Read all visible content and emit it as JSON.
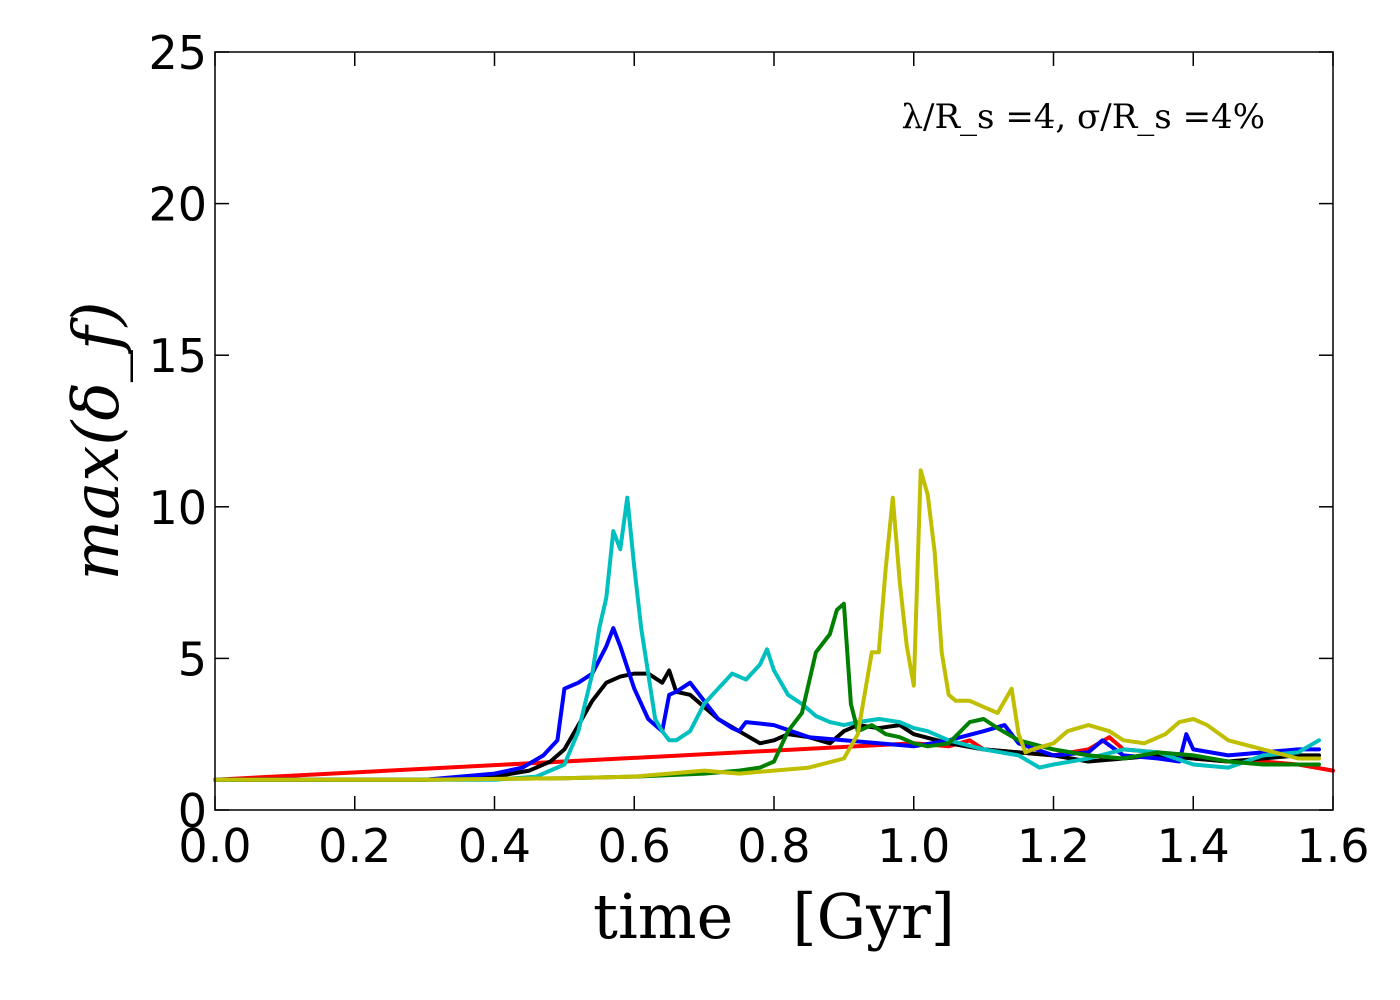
{
  "chart_data": {
    "type": "line",
    "title": "",
    "xlabel": "time   [Gyr]",
    "ylabel": "max(δ_f)",
    "xlim": [
      0.0,
      1.6
    ],
    "ylim": [
      0,
      25
    ],
    "xticks": [
      "0.0",
      "0.2",
      "0.4",
      "0.6",
      "0.8",
      "1.0",
      "1.2",
      "1.4",
      "1.6"
    ],
    "yticks": [
      "0",
      "5",
      "10",
      "15",
      "20",
      "25"
    ],
    "annotation": "λ/R_s =4, σ/R_s =4%",
    "grid": false,
    "legend": "none",
    "series": [
      {
        "name": "red",
        "color": "#ff0000",
        "x": [
          0.0,
          1.0,
          1.05,
          1.08,
          1.1,
          1.15,
          1.2,
          1.25,
          1.28,
          1.3,
          1.35,
          1.4,
          1.45,
          1.5,
          1.55,
          1.6
        ],
        "y": [
          1.0,
          2.2,
          2.1,
          2.3,
          2.0,
          1.9,
          1.8,
          2.0,
          2.4,
          2.0,
          1.9,
          1.7,
          1.6,
          1.6,
          1.5,
          1.3
        ]
      },
      {
        "name": "black",
        "color": "#000000",
        "x": [
          0.0,
          0.3,
          0.4,
          0.45,
          0.48,
          0.5,
          0.52,
          0.54,
          0.56,
          0.58,
          0.6,
          0.62,
          0.64,
          0.65,
          0.66,
          0.68,
          0.7,
          0.72,
          0.75,
          0.78,
          0.8,
          0.82,
          0.85,
          0.88,
          0.9,
          0.92,
          0.95,
          0.98,
          1.0,
          1.05,
          1.1,
          1.15,
          1.2,
          1.25,
          1.3,
          1.35,
          1.4,
          1.45,
          1.5,
          1.55,
          1.58
        ],
        "y": [
          1.0,
          1.0,
          1.1,
          1.3,
          1.6,
          2.0,
          2.8,
          3.6,
          4.2,
          4.4,
          4.5,
          4.5,
          4.2,
          4.6,
          3.9,
          3.8,
          3.4,
          3.0,
          2.6,
          2.2,
          2.3,
          2.5,
          2.4,
          2.2,
          2.6,
          2.8,
          2.7,
          2.8,
          2.5,
          2.2,
          2.0,
          1.9,
          1.8,
          1.6,
          1.7,
          1.8,
          1.7,
          1.6,
          1.7,
          1.8,
          1.8
        ]
      },
      {
        "name": "blue",
        "color": "#0000ff",
        "x": [
          0.0,
          0.3,
          0.4,
          0.44,
          0.47,
          0.49,
          0.5,
          0.52,
          0.54,
          0.56,
          0.57,
          0.58,
          0.6,
          0.62,
          0.64,
          0.65,
          0.66,
          0.68,
          0.7,
          0.72,
          0.74,
          0.75,
          0.76,
          0.8,
          0.85,
          0.9,
          0.95,
          1.0,
          1.05,
          1.1,
          1.13,
          1.15,
          1.2,
          1.25,
          1.27,
          1.3,
          1.35,
          1.38,
          1.39,
          1.4,
          1.45,
          1.5,
          1.55,
          1.58
        ],
        "y": [
          1.0,
          1.0,
          1.2,
          1.4,
          1.8,
          2.3,
          4.0,
          4.2,
          4.5,
          5.4,
          6.0,
          5.4,
          4.0,
          3.0,
          2.6,
          3.8,
          3.9,
          4.2,
          3.6,
          3.0,
          2.7,
          2.6,
          2.9,
          2.8,
          2.4,
          2.3,
          2.2,
          2.1,
          2.3,
          2.6,
          2.8,
          2.2,
          1.8,
          1.9,
          2.3,
          1.8,
          1.7,
          1.6,
          2.5,
          2.0,
          1.8,
          1.9,
          2.0,
          2.0
        ]
      },
      {
        "name": "cyan",
        "color": "#00bfbf",
        "x": [
          0.0,
          0.4,
          0.46,
          0.5,
          0.52,
          0.54,
          0.55,
          0.56,
          0.57,
          0.58,
          0.59,
          0.6,
          0.61,
          0.62,
          0.63,
          0.64,
          0.65,
          0.66,
          0.68,
          0.7,
          0.72,
          0.74,
          0.76,
          0.78,
          0.79,
          0.8,
          0.82,
          0.84,
          0.86,
          0.88,
          0.9,
          0.92,
          0.95,
          0.98,
          1.0,
          1.02,
          1.05,
          1.1,
          1.15,
          1.18,
          1.2,
          1.25,
          1.3,
          1.35,
          1.4,
          1.45,
          1.5,
          1.55,
          1.58
        ],
        "y": [
          1.0,
          1.0,
          1.1,
          1.5,
          2.6,
          4.5,
          6.0,
          7.0,
          9.2,
          8.6,
          10.3,
          8.0,
          6.0,
          4.5,
          3.0,
          2.6,
          2.3,
          2.3,
          2.6,
          3.5,
          4.0,
          4.5,
          4.3,
          4.8,
          5.3,
          4.6,
          3.8,
          3.5,
          3.1,
          2.9,
          2.8,
          2.9,
          3.0,
          2.9,
          2.7,
          2.6,
          2.3,
          2.0,
          1.8,
          1.4,
          1.5,
          1.7,
          2.0,
          1.9,
          1.5,
          1.4,
          1.8,
          1.9,
          2.3
        ]
      },
      {
        "name": "green",
        "color": "#008000",
        "x": [
          0.0,
          0.3,
          0.5,
          0.6,
          0.65,
          0.7,
          0.75,
          0.78,
          0.8,
          0.82,
          0.84,
          0.86,
          0.88,
          0.89,
          0.9,
          0.91,
          0.92,
          0.94,
          0.96,
          0.98,
          1.0,
          1.02,
          1.05,
          1.08,
          1.1,
          1.12,
          1.15,
          1.2,
          1.25,
          1.3,
          1.35,
          1.4,
          1.45,
          1.5,
          1.55,
          1.58
        ],
        "y": [
          1.0,
          1.0,
          1.05,
          1.1,
          1.15,
          1.2,
          1.3,
          1.4,
          1.6,
          2.6,
          3.2,
          5.2,
          5.8,
          6.6,
          6.8,
          3.5,
          2.6,
          2.8,
          2.5,
          2.4,
          2.2,
          2.1,
          2.2,
          2.9,
          3.0,
          2.7,
          2.3,
          2.0,
          1.8,
          1.7,
          1.9,
          1.8,
          1.6,
          1.5,
          1.5,
          1.5
        ]
      },
      {
        "name": "yellow",
        "color": "#bfbf00",
        "x": [
          0.0,
          0.3,
          0.5,
          0.6,
          0.65,
          0.7,
          0.75,
          0.8,
          0.85,
          0.9,
          0.92,
          0.94,
          0.95,
          0.96,
          0.97,
          0.98,
          0.99,
          1.0,
          1.01,
          1.02,
          1.03,
          1.04,
          1.05,
          1.06,
          1.08,
          1.1,
          1.12,
          1.14,
          1.15,
          1.16,
          1.17,
          1.2,
          1.22,
          1.25,
          1.28,
          1.3,
          1.33,
          1.36,
          1.38,
          1.4,
          1.42,
          1.45,
          1.5,
          1.55,
          1.58
        ],
        "y": [
          1.0,
          1.0,
          1.05,
          1.1,
          1.2,
          1.3,
          1.2,
          1.3,
          1.4,
          1.7,
          2.5,
          5.2,
          5.2,
          8.0,
          10.3,
          7.5,
          5.4,
          4.1,
          11.2,
          10.4,
          8.5,
          5.2,
          3.8,
          3.6,
          3.6,
          3.4,
          3.2,
          4.0,
          2.5,
          1.9,
          2.0,
          2.2,
          2.6,
          2.8,
          2.6,
          2.3,
          2.2,
          2.5,
          2.9,
          3.0,
          2.8,
          2.3,
          2.0,
          1.7,
          1.7
        ]
      }
    ]
  }
}
